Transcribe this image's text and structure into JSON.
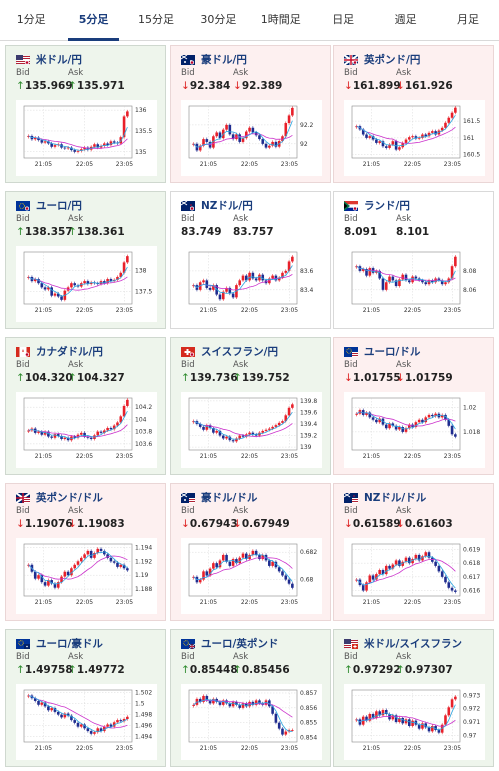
{
  "tabs": [
    {
      "label": "1分足",
      "active": false
    },
    {
      "label": "5分足",
      "active": true
    },
    {
      "label": "15分足",
      "active": false
    },
    {
      "label": "30分足",
      "active": false
    },
    {
      "label": "1時間足",
      "active": false
    },
    {
      "label": "日足",
      "active": false
    },
    {
      "label": "週足",
      "active": false
    },
    {
      "label": "月足",
      "active": false
    }
  ],
  "labels": {
    "bid": "Bid",
    "ask": "Ask"
  },
  "colors": {
    "up_bg": "#eef5ec",
    "down_bg": "#fdf0f0",
    "pair_text": "#1a3d7c",
    "up_arrow": "#2c8a2c",
    "down_arrow": "#dd2222",
    "candle_up": "#e8202a",
    "candle_down": "#1f2c8f",
    "ma_long": "#cc33cc",
    "ma_short": "#2aa6e0"
  },
  "cards": [
    {
      "pair": "米ドル/円",
      "flag": "us-jp-flag-icon",
      "direction": "up",
      "bid": "135.969",
      "ask": "135.971",
      "chart_data": {
        "type": "candlestick",
        "y_ticks": [
          "136",
          "135.5",
          "135"
        ],
        "x_ticks": [
          "21:05",
          "22:05",
          "23:05"
        ],
        "ylim": [
          134.85,
          136.1
        ],
        "closes": [
          135.38,
          135.3,
          135.34,
          135.28,
          135.22,
          135.25,
          135.2,
          135.12,
          135.16,
          135.18,
          135.1,
          135.08,
          135.1,
          135.04,
          135.0,
          135.02,
          135.06,
          135.1,
          135.05,
          135.12,
          135.18,
          135.1,
          135.14,
          135.2,
          135.16,
          135.25,
          135.22,
          135.2,
          135.35,
          135.85,
          135.97
        ]
      }
    },
    {
      "pair": "豪ドル/円",
      "flag": "au-jp-flag-icon",
      "direction": "down",
      "bid": "92.384",
      "ask": "92.389",
      "chart_data": {
        "type": "candlestick",
        "y_ticks": [
          "92.2",
          "92"
        ],
        "x_ticks": [
          "21:05",
          "22:05",
          "23:05"
        ],
        "ylim": [
          91.85,
          92.4
        ],
        "closes": [
          92.0,
          91.93,
          91.98,
          92.05,
          92.02,
          91.96,
          92.08,
          92.12,
          92.06,
          92.15,
          92.2,
          92.1,
          92.05,
          92.1,
          92.02,
          92.06,
          92.13,
          92.17,
          92.12,
          92.09,
          92.05,
          92.0,
          91.96,
          91.98,
          92.02,
          91.97,
          92.03,
          92.08,
          92.22,
          92.3,
          92.38
        ]
      }
    },
    {
      "pair": "英ポンド/円",
      "flag": "gb-jp-flag-icon",
      "direction": "down",
      "bid": "161.899",
      "ask": "161.926",
      "chart_data": {
        "type": "candlestick",
        "y_ticks": [
          "161.5",
          "161",
          "160.5"
        ],
        "x_ticks": [
          "21:05",
          "22:05",
          "23:05"
        ],
        "ylim": [
          160.4,
          161.95
        ],
        "closes": [
          161.35,
          161.25,
          161.1,
          161.0,
          161.05,
          160.95,
          160.85,
          160.9,
          160.75,
          160.7,
          160.8,
          160.9,
          160.65,
          160.72,
          160.85,
          160.95,
          161.02,
          161.05,
          160.98,
          161.0,
          161.1,
          161.05,
          161.15,
          161.2,
          161.1,
          161.22,
          161.3,
          161.45,
          161.6,
          161.75,
          161.9
        ]
      }
    },
    {
      "pair": "ユーロ/円",
      "flag": "eu-jp-flag-icon",
      "direction": "up",
      "bid": "138.357",
      "ask": "138.361",
      "chart_data": {
        "type": "candlestick",
        "y_ticks": [
          "138",
          "137.5"
        ],
        "x_ticks": [
          "21:05",
          "22:05",
          "23:05"
        ],
        "ylim": [
          137.2,
          138.45
        ],
        "closes": [
          137.85,
          137.75,
          137.8,
          137.7,
          137.6,
          137.55,
          137.6,
          137.4,
          137.45,
          137.38,
          137.3,
          137.52,
          137.6,
          137.7,
          137.65,
          137.62,
          137.7,
          137.75,
          137.68,
          137.72,
          137.7,
          137.68,
          137.75,
          137.7,
          137.8,
          137.75,
          137.78,
          137.85,
          137.95,
          138.2,
          138.35
        ]
      }
    },
    {
      "pair": "NZドル/円",
      "flag": "nz-jp-flag-icon",
      "direction": "neutral",
      "bid": "83.749",
      "ask": "83.757",
      "chart_data": {
        "type": "candlestick",
        "y_ticks": [
          "83.6",
          "83.4"
        ],
        "x_ticks": [
          "21:05",
          "22:05",
          "23:05"
        ],
        "ylim": [
          83.25,
          83.8
        ],
        "closes": [
          83.45,
          83.4,
          83.48,
          83.5,
          83.42,
          83.4,
          83.45,
          83.35,
          83.3,
          83.38,
          83.42,
          83.36,
          83.32,
          83.45,
          83.5,
          83.55,
          83.5,
          83.58,
          83.52,
          83.5,
          83.56,
          83.5,
          83.47,
          83.52,
          83.55,
          83.5,
          83.53,
          83.58,
          83.6,
          83.7,
          83.75
        ]
      }
    },
    {
      "pair": "ランド/円",
      "flag": "za-jp-flag-icon",
      "direction": "neutral",
      "bid": "8.091",
      "ask": "8.101",
      "chart_data": {
        "type": "candlestick",
        "y_ticks": [
          "8.08",
          "8.06"
        ],
        "x_ticks": [
          "21:05",
          "22:05",
          "23:05"
        ],
        "ylim": [
          8.045,
          8.1
        ],
        "closes": [
          8.085,
          8.08,
          8.082,
          8.075,
          8.083,
          8.078,
          8.08,
          8.072,
          8.06,
          8.068,
          8.074,
          8.07,
          8.064,
          8.071,
          8.076,
          8.07,
          8.068,
          8.074,
          8.072,
          8.07,
          8.068,
          8.066,
          8.07,
          8.068,
          8.072,
          8.07,
          8.066,
          8.068,
          8.072,
          8.085,
          8.095
        ]
      }
    },
    {
      "pair": "カナダドル/円",
      "flag": "ca-jp-flag-icon",
      "direction": "up",
      "bid": "104.320",
      "ask": "104.327",
      "chart_data": {
        "type": "candlestick",
        "y_ticks": [
          "104.2",
          "104",
          "103.8",
          "103.6"
        ],
        "x_ticks": [
          "21:05",
          "22:05",
          "23:05"
        ],
        "ylim": [
          103.5,
          104.35
        ],
        "closes": [
          103.82,
          103.85,
          103.78,
          103.8,
          103.75,
          103.8,
          103.72,
          103.7,
          103.76,
          103.73,
          103.68,
          103.7,
          103.66,
          103.72,
          103.7,
          103.75,
          103.78,
          103.72,
          103.7,
          103.68,
          103.74,
          103.8,
          103.78,
          103.82,
          103.86,
          103.84,
          103.9,
          103.95,
          104.05,
          104.22,
          104.32
        ]
      }
    },
    {
      "pair": "スイスフラン/円",
      "flag": "ch-jp-flag-icon",
      "direction": "up",
      "bid": "139.736",
      "ask": "139.752",
      "chart_data": {
        "type": "candlestick",
        "y_ticks": [
          "139.8",
          "139.6",
          "139.4",
          "139.2",
          "139"
        ],
        "x_ticks": [
          "21:05",
          "22:05",
          "23:05"
        ],
        "ylim": [
          138.95,
          139.85
        ],
        "closes": [
          139.45,
          139.4,
          139.35,
          139.3,
          139.38,
          139.33,
          139.25,
          139.28,
          139.2,
          139.15,
          139.18,
          139.12,
          139.1,
          139.15,
          139.2,
          139.18,
          139.22,
          139.25,
          139.22,
          139.2,
          139.25,
          139.28,
          139.3,
          139.32,
          139.35,
          139.38,
          139.42,
          139.45,
          139.55,
          139.68,
          139.74
        ]
      }
    },
    {
      "pair": "ユーロ/ドル",
      "flag": "eu-us-flag-icon",
      "direction": "down",
      "bid": "1.01755",
      "ask": "1.01759",
      "chart_data": {
        "type": "candlestick",
        "y_ticks": [
          "1.02",
          "1.018"
        ],
        "x_ticks": [
          "21:05",
          "22:05",
          "23:05"
        ],
        "ylim": [
          1.0165,
          1.0208
        ],
        "closes": [
          1.0195,
          1.0198,
          1.0194,
          1.0196,
          1.0192,
          1.019,
          1.0188,
          1.0191,
          1.0186,
          1.0183,
          1.0187,
          1.0185,
          1.0182,
          1.0184,
          1.018,
          1.0183,
          1.0186,
          1.0184,
          1.0188,
          1.019,
          1.0188,
          1.0192,
          1.0194,
          1.0193,
          1.0195,
          1.0192,
          1.0194,
          1.019,
          1.0185,
          1.0178,
          1.0176
        ]
      }
    },
    {
      "pair": "英ポンド/ドル",
      "flag": "gb-us-flag-icon",
      "direction": "down",
      "bid": "1.19076",
      "ask": "1.19083",
      "chart_data": {
        "type": "candlestick",
        "y_ticks": [
          "1.194",
          "1.192",
          "1.19",
          "1.188"
        ],
        "x_ticks": [
          "21:05",
          "22:05",
          "23:05"
        ],
        "ylim": [
          1.187,
          1.1945
        ],
        "closes": [
          1.1915,
          1.1905,
          1.1895,
          1.19,
          1.189,
          1.1885,
          1.1893,
          1.1888,
          1.1882,
          1.189,
          1.1898,
          1.1905,
          1.19,
          1.191,
          1.1915,
          1.192,
          1.1925,
          1.193,
          1.1935,
          1.1925,
          1.1932,
          1.1938,
          1.1935,
          1.193,
          1.1925,
          1.192,
          1.1918,
          1.1912,
          1.1915,
          1.191,
          1.1907
        ]
      }
    },
    {
      "pair": "豪ドル/ドル",
      "flag": "au-us-flag-icon",
      "direction": "down",
      "bid": "0.67943",
      "ask": "0.67949",
      "chart_data": {
        "type": "candlestick",
        "y_ticks": [
          "0.682",
          "0.68"
        ],
        "x_ticks": [
          "21:05",
          "22:05",
          "23:05"
        ],
        "ylim": [
          0.6788,
          0.6826
        ],
        "closes": [
          0.6802,
          0.6798,
          0.68,
          0.6806,
          0.6803,
          0.6808,
          0.6812,
          0.6809,
          0.6814,
          0.6818,
          0.6813,
          0.681,
          0.6815,
          0.6812,
          0.6816,
          0.6819,
          0.6815,
          0.6818,
          0.6821,
          0.6818,
          0.6815,
          0.6818,
          0.6814,
          0.681,
          0.6813,
          0.6809,
          0.6806,
          0.6803,
          0.68,
          0.6797,
          0.6794
        ]
      }
    },
    {
      "pair": "NZドル/ドル",
      "flag": "nz-us-flag-icon",
      "direction": "down",
      "bid": "0.61589",
      "ask": "0.61603",
      "chart_data": {
        "type": "candlestick",
        "y_ticks": [
          "0.619",
          "0.618",
          "0.617",
          "0.616"
        ],
        "x_ticks": [
          "21:05",
          "22:05",
          "23:05"
        ],
        "ylim": [
          0.6156,
          0.6194
        ],
        "closes": [
          0.6168,
          0.6164,
          0.616,
          0.6166,
          0.6171,
          0.6168,
          0.6172,
          0.6175,
          0.6172,
          0.6178,
          0.6176,
          0.6179,
          0.6182,
          0.6178,
          0.6181,
          0.6184,
          0.618,
          0.6183,
          0.6186,
          0.6182,
          0.6185,
          0.6188,
          0.6184,
          0.6181,
          0.6178,
          0.6174,
          0.617,
          0.6166,
          0.6162,
          0.616,
          0.6159
        ]
      }
    },
    {
      "pair": "ユーロ/豪ドル",
      "flag": "eu-au-flag-icon",
      "direction": "up",
      "bid": "1.49758",
      "ask": "1.49772",
      "chart_data": {
        "type": "candlestick",
        "y_ticks": [
          "1.502",
          "1.5",
          "1.498",
          "1.496",
          "1.494"
        ],
        "x_ticks": [
          "21:05",
          "22:05",
          "23:05"
        ],
        "ylim": [
          1.493,
          1.5025
        ],
        "closes": [
          1.5015,
          1.501,
          1.5005,
          1.4998,
          1.5002,
          1.4995,
          1.4988,
          1.4992,
          1.4985,
          1.498,
          1.4975,
          1.4982,
          1.4978,
          1.497,
          1.4965,
          1.4958,
          1.4962,
          1.4955,
          1.495,
          1.4945,
          1.4948,
          1.4955,
          1.495,
          1.4958,
          1.4962,
          1.4958,
          1.4966,
          1.497,
          1.4968,
          1.4972,
          1.4976
        ]
      }
    },
    {
      "pair": "ユーロ/英ポンド",
      "flag": "eu-gb-flag-icon",
      "direction": "up",
      "bid": "0.85448",
      "ask": "0.85456",
      "chart_data": {
        "type": "candlestick",
        "y_ticks": [
          "0.857",
          "0.856",
          "0.855",
          "0.854"
        ],
        "x_ticks": [
          "21:05",
          "22:05",
          "23:05"
        ],
        "ylim": [
          0.8537,
          0.8572
        ],
        "closes": [
          0.8562,
          0.8566,
          0.8564,
          0.8568,
          0.8565,
          0.8563,
          0.8566,
          0.8564,
          0.8562,
          0.8565,
          0.8563,
          0.8561,
          0.8564,
          0.8562,
          0.856,
          0.8563,
          0.8561,
          0.8564,
          0.8562,
          0.8565,
          0.8563,
          0.8562,
          0.8565,
          0.8561,
          0.8556,
          0.855,
          0.8546,
          0.8542,
          0.8544,
          0.8545,
          0.8545
        ]
      }
    },
    {
      "pair": "米ドル/スイスフラン",
      "flag": "us-ch-flag-icon",
      "direction": "up",
      "bid": "0.97292",
      "ask": "0.97307",
      "chart_data": {
        "type": "candlestick",
        "y_ticks": [
          "0.973",
          "0.972",
          "0.971",
          "0.97"
        ],
        "x_ticks": [
          "21:05",
          "22:05",
          "23:05"
        ],
        "ylim": [
          0.9695,
          0.9734
        ],
        "closes": [
          0.9712,
          0.9708,
          0.9714,
          0.9711,
          0.9716,
          0.9713,
          0.9718,
          0.9715,
          0.9719,
          0.9716,
          0.9712,
          0.9715,
          0.971,
          0.9713,
          0.9709,
          0.9712,
          0.9707,
          0.9711,
          0.9708,
          0.9705,
          0.9709,
          0.9706,
          0.9703,
          0.9707,
          0.9704,
          0.9702,
          0.9708,
          0.9715,
          0.9721,
          0.9727,
          0.9729
        ]
      }
    }
  ]
}
